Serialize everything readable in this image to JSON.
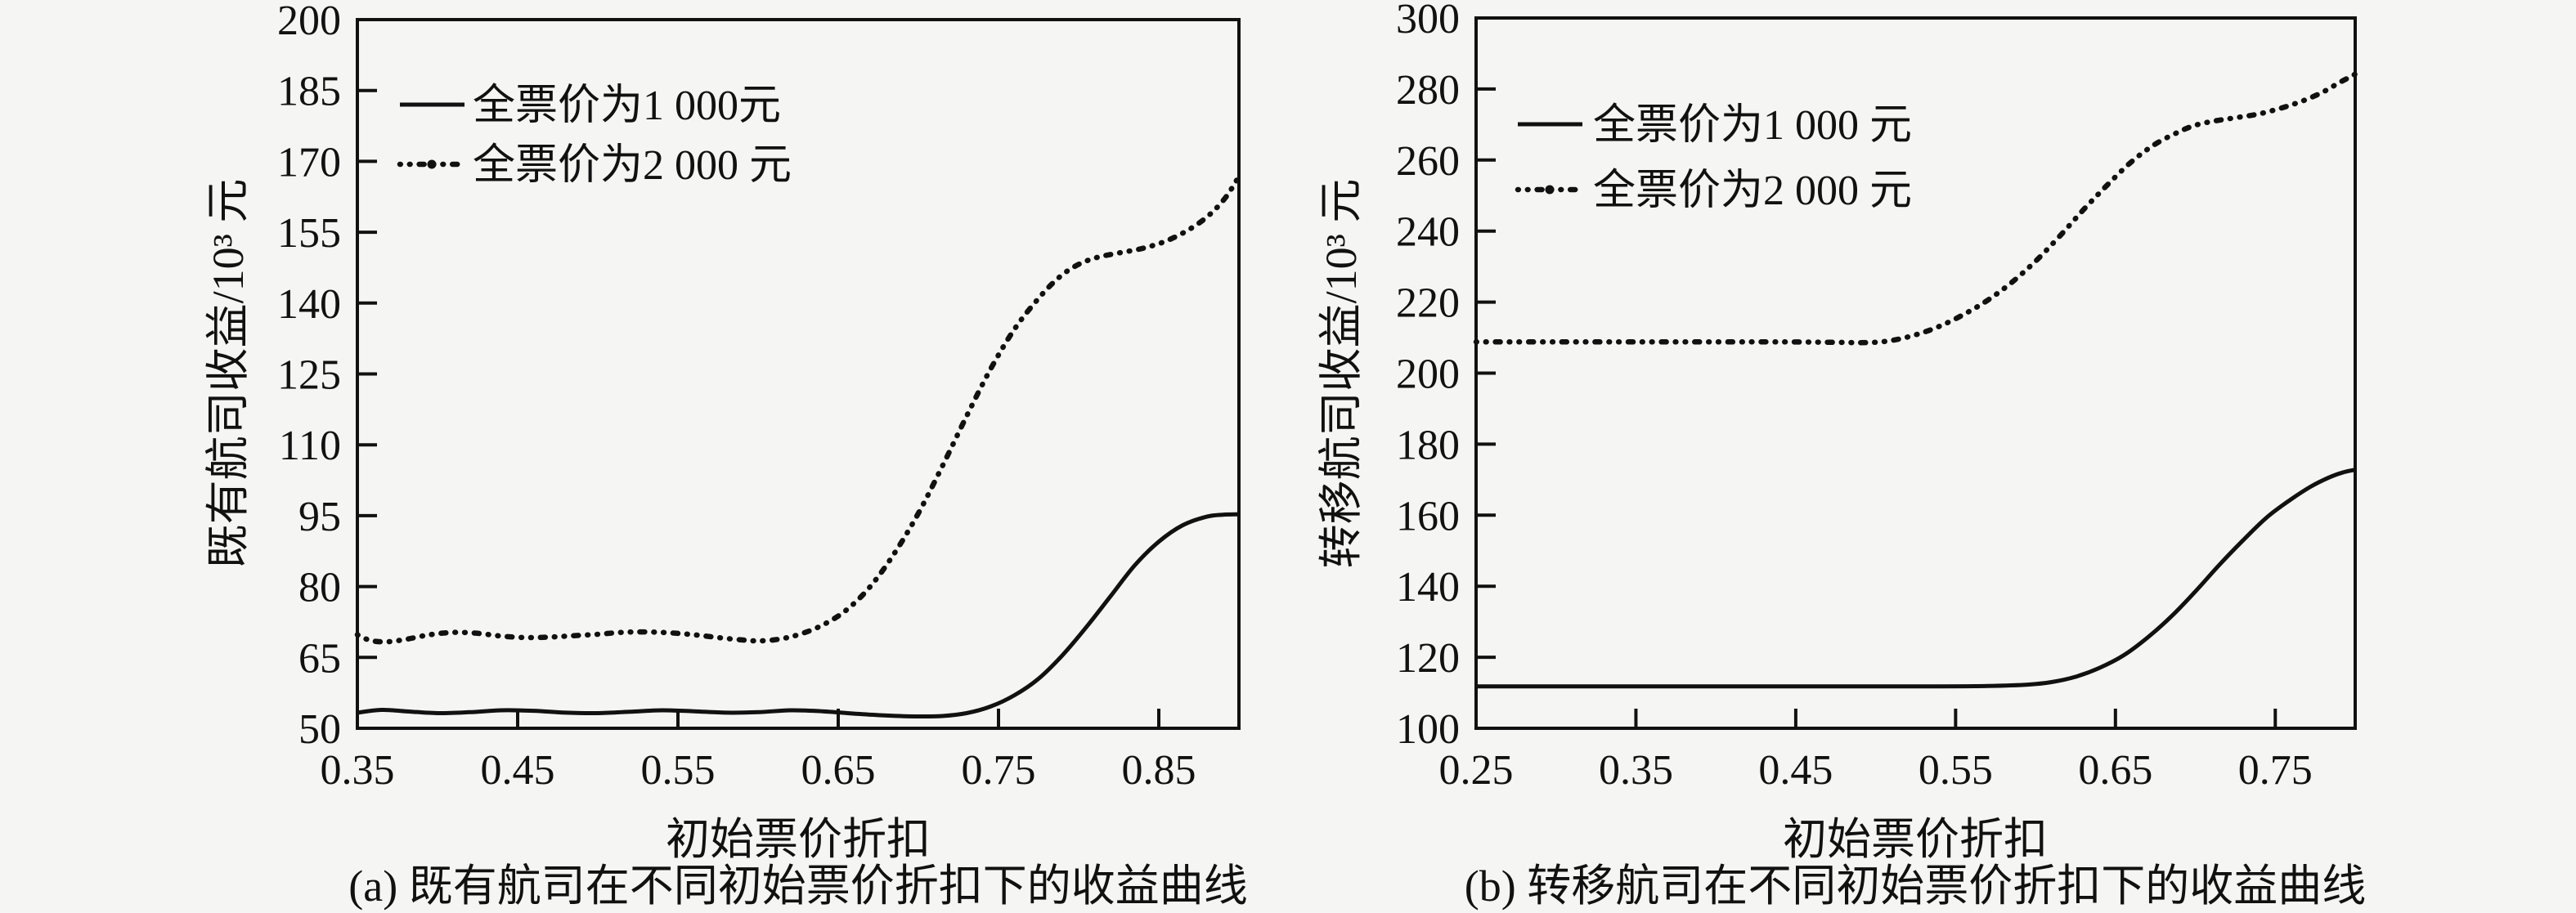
{
  "page": {
    "background": "#f5f5f3",
    "ink": "#111111"
  },
  "chart_data": [
    {
      "id": "a",
      "type": "line",
      "caption": "(a) 既有航司在不同初始票价折扣下的收益曲线",
      "xlabel": "初始票价折扣",
      "ylabel": "既有航司收益/10³ 元",
      "xlim": [
        0.35,
        0.9
      ],
      "ylim": [
        50,
        200
      ],
      "xticks": [
        0.35,
        0.45,
        0.55,
        0.65,
        0.75,
        0.85
      ],
      "yticks": [
        50,
        65,
        80,
        95,
        110,
        125,
        140,
        155,
        170,
        185,
        200
      ],
      "grid": false,
      "legend_position": "top-left",
      "series": [
        {
          "name": "全票价为1 000元",
          "style": "solid",
          "points": [
            [
              0.35,
              53.3
            ],
            [
              0.365,
              53.9
            ],
            [
              0.38,
              53.6
            ],
            [
              0.4,
              53.2
            ],
            [
              0.42,
              53.4
            ],
            [
              0.44,
              53.8
            ],
            [
              0.46,
              53.7
            ],
            [
              0.48,
              53.3
            ],
            [
              0.5,
              53.2
            ],
            [
              0.52,
              53.5
            ],
            [
              0.54,
              53.8
            ],
            [
              0.56,
              53.6
            ],
            [
              0.58,
              53.3
            ],
            [
              0.6,
              53.4
            ],
            [
              0.62,
              53.8
            ],
            [
              0.64,
              53.6
            ],
            [
              0.66,
              53.1
            ],
            [
              0.68,
              52.7
            ],
            [
              0.7,
              52.5
            ],
            [
              0.715,
              52.6
            ],
            [
              0.73,
              53.2
            ],
            [
              0.745,
              54.6
            ],
            [
              0.76,
              57
            ],
            [
              0.775,
              60.5
            ],
            [
              0.79,
              65.5
            ],
            [
              0.805,
              71.5
            ],
            [
              0.82,
              78
            ],
            [
              0.835,
              84.5
            ],
            [
              0.85,
              89.5
            ],
            [
              0.865,
              93
            ],
            [
              0.88,
              94.8
            ],
            [
              0.89,
              95.2
            ],
            [
              0.9,
              95.3
            ]
          ]
        },
        {
          "name": "全票价为2 000 元",
          "style": "dotted",
          "points": [
            [
              0.35,
              69.8
            ],
            [
              0.358,
              68.6
            ],
            [
              0.368,
              68.3
            ],
            [
              0.38,
              68.8
            ],
            [
              0.395,
              69.8
            ],
            [
              0.41,
              70.3
            ],
            [
              0.425,
              70.1
            ],
            [
              0.44,
              69.5
            ],
            [
              0.455,
              69.2
            ],
            [
              0.47,
              69.3
            ],
            [
              0.485,
              69.6
            ],
            [
              0.5,
              69.9
            ],
            [
              0.515,
              70.3
            ],
            [
              0.53,
              70.4
            ],
            [
              0.545,
              70.2
            ],
            [
              0.56,
              69.8
            ],
            [
              0.575,
              69.2
            ],
            [
              0.59,
              68.7
            ],
            [
              0.6,
              68.5
            ],
            [
              0.612,
              68.8
            ],
            [
              0.625,
              69.8
            ],
            [
              0.64,
              71.8
            ],
            [
              0.655,
              75
            ],
            [
              0.67,
              80
            ],
            [
              0.685,
              87
            ],
            [
              0.7,
              95.5
            ],
            [
              0.715,
              105.5
            ],
            [
              0.73,
              116
            ],
            [
              0.745,
              126
            ],
            [
              0.76,
              134.5
            ],
            [
              0.775,
              141
            ],
            [
              0.788,
              145.5
            ],
            [
              0.8,
              148.2
            ],
            [
              0.812,
              149.7
            ],
            [
              0.825,
              150.6
            ],
            [
              0.84,
              151.6
            ],
            [
              0.855,
              153.2
            ],
            [
              0.87,
              155.8
            ],
            [
              0.882,
              158.8
            ],
            [
              0.892,
              162.5
            ],
            [
              0.9,
              166.8
            ]
          ]
        }
      ]
    },
    {
      "id": "b",
      "type": "line",
      "caption": "(b) 转移航司在不同初始票价折扣下的收益曲线",
      "xlabel": "初始票价折扣",
      "ylabel": "转移航司收益/10³ 元",
      "xlim": [
        0.25,
        0.8
      ],
      "ylim": [
        100,
        300
      ],
      "xticks": [
        0.25,
        0.35,
        0.45,
        0.55,
        0.65,
        0.75
      ],
      "yticks": [
        100,
        120,
        140,
        160,
        180,
        200,
        220,
        240,
        260,
        280,
        300
      ],
      "grid": false,
      "legend_position": "top-left",
      "series": [
        {
          "name": "全票价为1 000 元",
          "style": "solid",
          "points": [
            [
              0.25,
              111.8
            ],
            [
              0.3,
              111.8
            ],
            [
              0.35,
              111.8
            ],
            [
              0.4,
              111.8
            ],
            [
              0.45,
              111.8
            ],
            [
              0.5,
              111.8
            ],
            [
              0.54,
              111.8
            ],
            [
              0.57,
              111.9
            ],
            [
              0.595,
              112.3
            ],
            [
              0.61,
              113
            ],
            [
              0.625,
              114.5
            ],
            [
              0.64,
              117
            ],
            [
              0.655,
              120.5
            ],
            [
              0.67,
              125.5
            ],
            [
              0.685,
              131.5
            ],
            [
              0.7,
              138.5
            ],
            [
              0.715,
              146
            ],
            [
              0.73,
              153
            ],
            [
              0.745,
              159.5
            ],
            [
              0.76,
              164.5
            ],
            [
              0.772,
              168
            ],
            [
              0.783,
              170.5
            ],
            [
              0.792,
              172
            ],
            [
              0.8,
              172.8
            ]
          ]
        },
        {
          "name": "全票价为2 000 元",
          "style": "dotted",
          "points": [
            [
              0.25,
              208.8
            ],
            [
              0.3,
              208.8
            ],
            [
              0.35,
              208.8
            ],
            [
              0.4,
              208.8
            ],
            [
              0.44,
              208.8
            ],
            [
              0.47,
              208.7
            ],
            [
              0.495,
              208.6
            ],
            [
              0.51,
              209.2
            ],
            [
              0.525,
              210.8
            ],
            [
              0.54,
              213.2
            ],
            [
              0.555,
              216.5
            ],
            [
              0.57,
              220.5
            ],
            [
              0.585,
              225.5
            ],
            [
              0.6,
              231.5
            ],
            [
              0.615,
              238.5
            ],
            [
              0.63,
              246
            ],
            [
              0.645,
              253
            ],
            [
              0.66,
              259.5
            ],
            [
              0.675,
              264.5
            ],
            [
              0.69,
              268
            ],
            [
              0.7,
              269.8
            ],
            [
              0.712,
              271
            ],
            [
              0.725,
              271.9
            ],
            [
              0.74,
              273
            ],
            [
              0.755,
              274.8
            ],
            [
              0.768,
              276.8
            ],
            [
              0.78,
              279.2
            ],
            [
              0.79,
              281.8
            ],
            [
              0.796,
              283.2
            ],
            [
              0.8,
              284.2
            ]
          ]
        }
      ]
    }
  ]
}
